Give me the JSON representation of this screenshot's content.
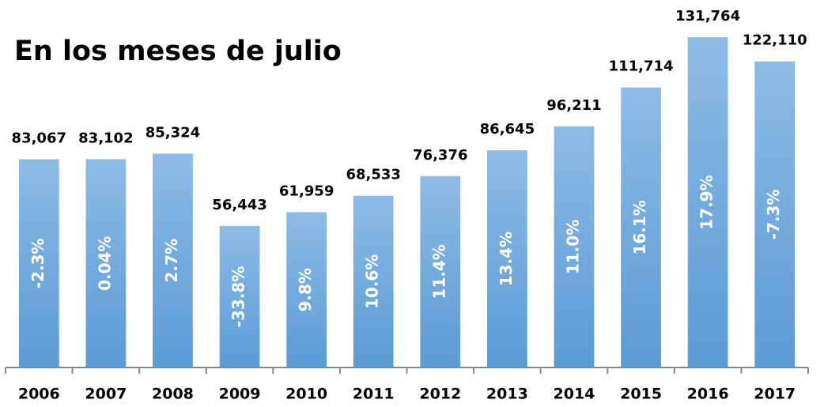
{
  "chart_data": {
    "type": "bar",
    "title": "En los meses de julio",
    "categories": [
      "2006",
      "2007",
      "2008",
      "2009",
      "2010",
      "2011",
      "2012",
      "2013",
      "2014",
      "2015",
      "2016",
      "2017"
    ],
    "values": [
      83067,
      83102,
      85324,
      56443,
      61959,
      68533,
      76376,
      86645,
      96211,
      111714,
      131764,
      122110
    ],
    "value_labels": [
      "83,067",
      "83,102",
      "85,324",
      "56,443",
      "61,959",
      "68,533",
      "76,376",
      "86,645",
      "96,211",
      "111,714",
      "131,764",
      "122,110"
    ],
    "annotations": [
      "-2.3%",
      "0.04%",
      "2.7%",
      "-33.8%",
      "9.8%",
      "10.6%",
      "11.4%",
      "13.4%",
      "11.0%",
      "16.1%",
      "17.9%",
      "-7.3%"
    ],
    "color": "#5b9bd5",
    "ylim": [
      0,
      140000
    ]
  }
}
